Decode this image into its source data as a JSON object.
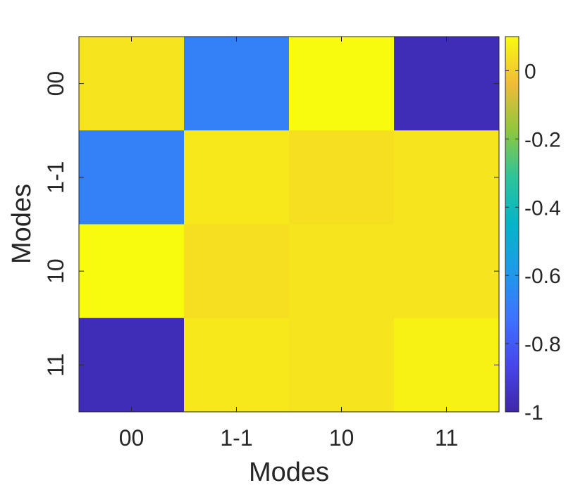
{
  "chart_data": {
    "type": "heatmap",
    "x_categories": [
      "00",
      "1-1",
      "10",
      "11"
    ],
    "y_categories": [
      "00",
      "1-1",
      "10",
      "11"
    ],
    "xlabel": "Modes",
    "ylabel": "Modes",
    "values": [
      [
        0.05,
        -0.68,
        0.1,
        -0.97
      ],
      [
        -0.68,
        0.06,
        0.04,
        0.05
      ],
      [
        0.1,
        0.04,
        0.05,
        0.05
      ],
      [
        -0.97,
        0.06,
        0.05,
        0.08
      ]
    ],
    "colorbar": {
      "range": [
        -1,
        0.1
      ],
      "ticks": [
        0,
        -0.2,
        -0.4,
        -0.6,
        -0.8,
        -1
      ],
      "tick_labels": [
        "0",
        "-0.2",
        "-0.4",
        "-0.6",
        "-0.8",
        "-1"
      ],
      "colormap": "parula"
    },
    "grid": false
  }
}
